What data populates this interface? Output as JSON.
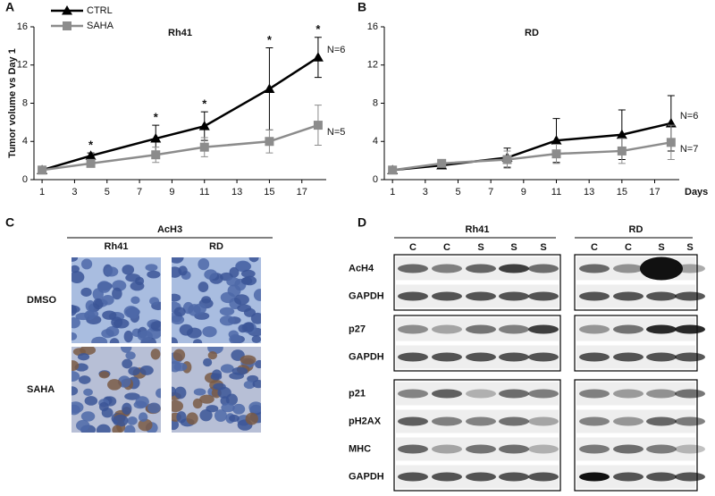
{
  "panels": {
    "a": "A",
    "b": "B",
    "c": "C",
    "d": "D"
  },
  "chart_data": [
    {
      "type": "line",
      "title": "Rh41",
      "y_label": "Tumor volume vs Day 1",
      "x": [
        1,
        4,
        8,
        11,
        15,
        18
      ],
      "xlim": [
        0.5,
        18.5
      ],
      "xticks": [
        1,
        3,
        5,
        7,
        9,
        11,
        13,
        15,
        17
      ],
      "ylim": [
        0,
        16
      ],
      "yticks": [
        0,
        4,
        8,
        12,
        16
      ],
      "legend": "upper left",
      "series": [
        {
          "name": "CTRL",
          "color": "#000000",
          "marker": "triangle",
          "values": [
            1,
            2.5,
            4.3,
            5.6,
            9.5,
            12.8
          ],
          "errors": [
            0.1,
            0.3,
            1.4,
            1.5,
            4.3,
            2.1
          ],
          "end_label": "N=6"
        },
        {
          "name": "SAHA",
          "color": "#8c8c8c",
          "marker": "square",
          "values": [
            1,
            1.7,
            2.6,
            3.4,
            4.0,
            5.7
          ],
          "errors": [
            0.1,
            0.2,
            0.8,
            1.0,
            1.2,
            2.1
          ],
          "end_label": "N=5"
        }
      ],
      "annotations": [
        {
          "x": 4,
          "text": "*"
        },
        {
          "x": 8,
          "text": "*"
        },
        {
          "x": 11,
          "text": "*"
        },
        {
          "x": 15,
          "text": "*"
        },
        {
          "x": 18,
          "text": "*"
        }
      ]
    },
    {
      "type": "line",
      "title": "RD",
      "x_label": "Days",
      "x": [
        1,
        4,
        8,
        11,
        15,
        18
      ],
      "xlim": [
        0.5,
        18.5
      ],
      "xticks": [
        1,
        3,
        5,
        7,
        9,
        11,
        13,
        15,
        17
      ],
      "ylim": [
        0,
        16
      ],
      "yticks": [
        0,
        4,
        8,
        12,
        16
      ],
      "legend": false,
      "series": [
        {
          "color": "#000000",
          "marker": "triangle",
          "values": [
            1,
            1.5,
            2.3,
            4.1,
            4.7,
            5.9
          ],
          "errors": [
            0.1,
            0.2,
            1.0,
            2.3,
            2.6,
            2.9
          ],
          "end_label": "N=6"
        },
        {
          "color": "#8c8c8c",
          "marker": "square",
          "values": [
            1,
            1.7,
            2.1,
            2.7,
            3.0,
            3.9
          ],
          "errors": [
            0.1,
            0.2,
            0.9,
            1.0,
            1.3,
            1.8
          ],
          "end_label": "N=7"
        }
      ]
    }
  ],
  "histology": {
    "title": "AcH3",
    "columns": [
      "Rh41",
      "RD"
    ],
    "rows": [
      "DMSO",
      "SAHA"
    ]
  },
  "western": {
    "groups": [
      {
        "title": "Rh41",
        "lanes": [
          "C",
          "C",
          "S",
          "S",
          "S"
        ]
      },
      {
        "title": "RD",
        "lanes": [
          "C",
          "C",
          "S",
          "S"
        ]
      }
    ],
    "blocks": [
      [
        "AcH4",
        "GAPDH"
      ],
      [
        "p27",
        "GAPDH"
      ],
      [
        "p21",
        "pH2AX",
        "MHC",
        "GAPDH"
      ]
    ]
  }
}
